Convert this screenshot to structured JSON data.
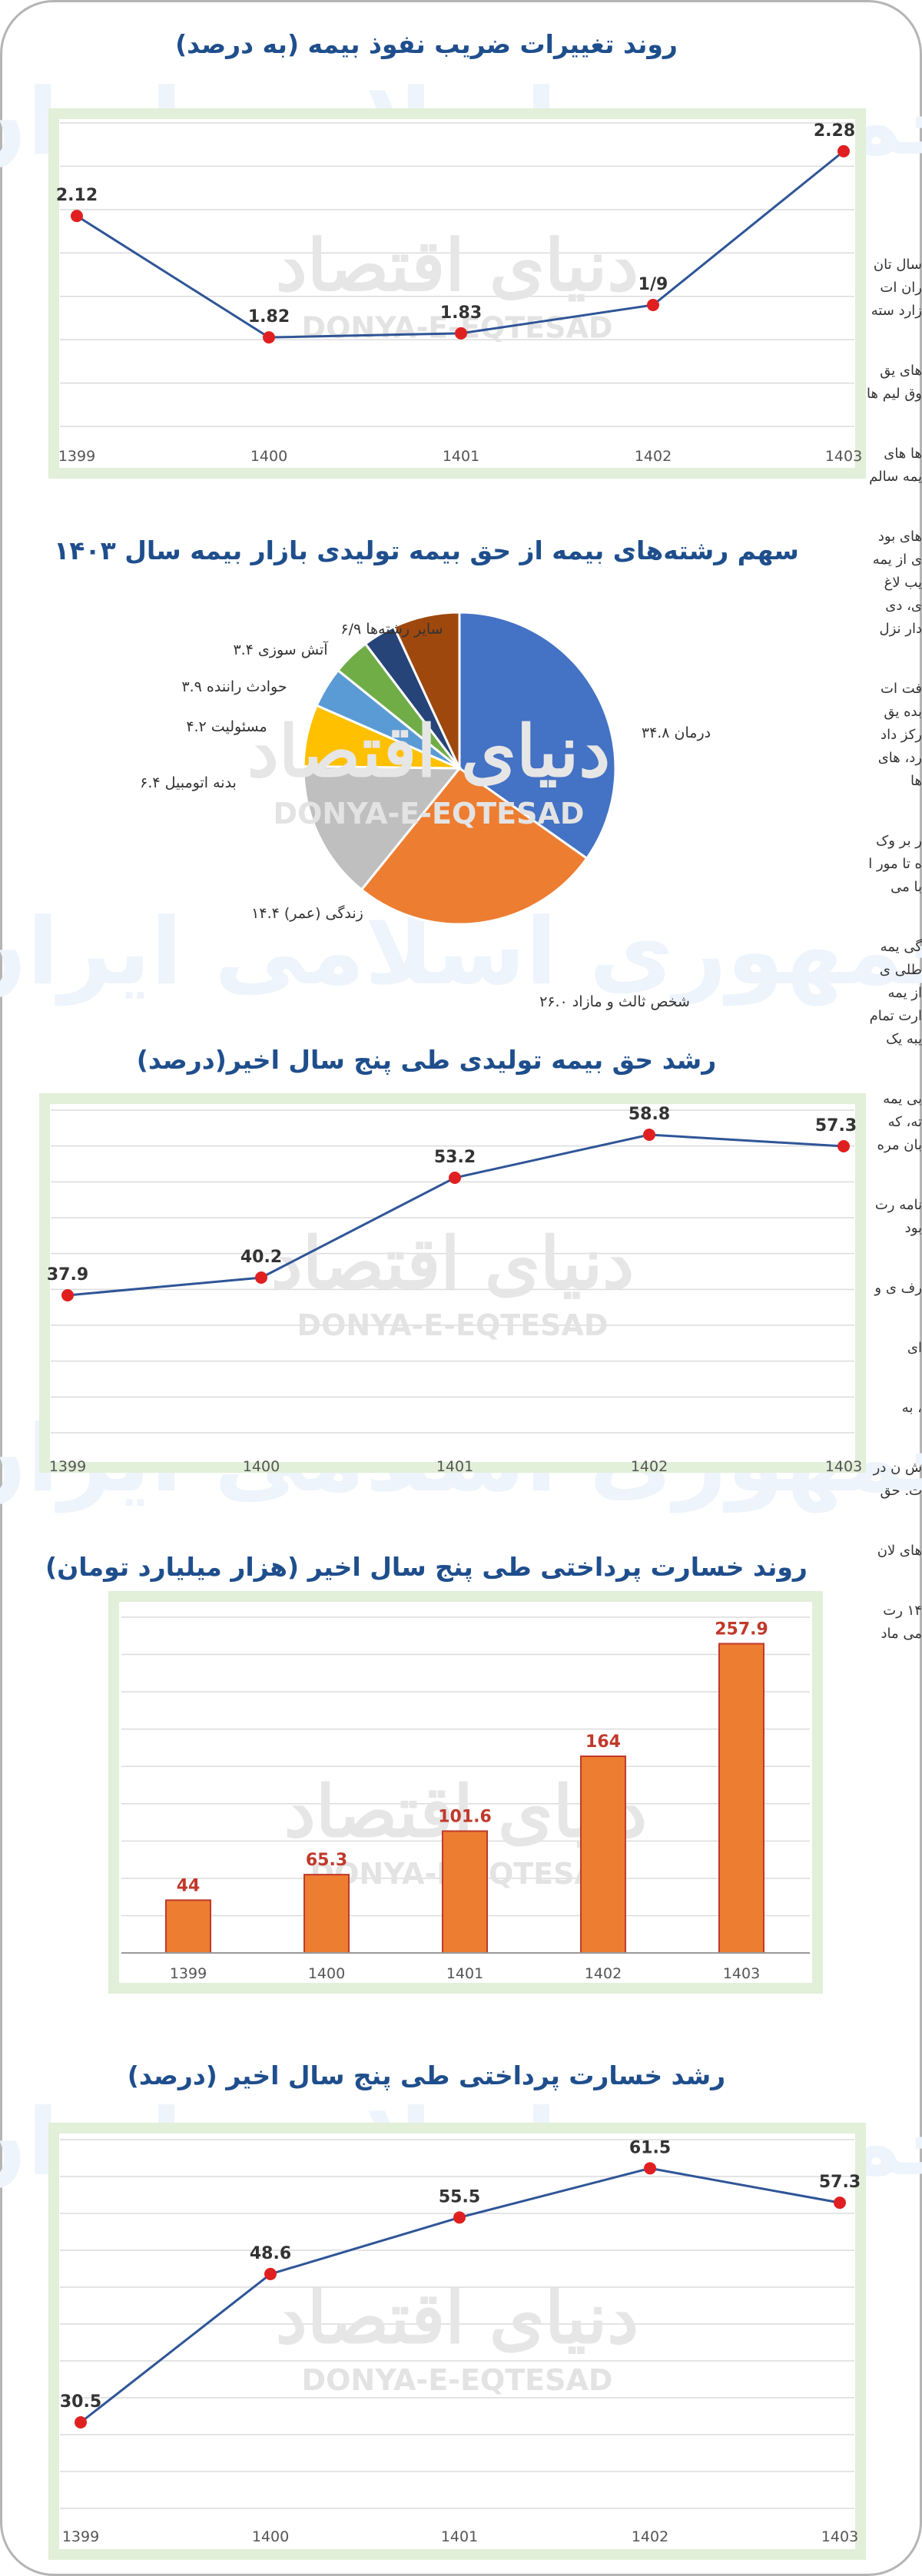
{
  "watermark": {
    "script": "دنیای اقتصاد",
    "latin": "DONYA-E-EQTESAD",
    "bg": "جمهوری اسلامی ایران"
  },
  "colors": {
    "title": "#1f4e8c",
    "line": "#2f5597",
    "dot": "#e02020",
    "bar": "#ed7d31",
    "bar_label": "#c0392b",
    "panel_border": "#e2efd9"
  },
  "chart_data": [
    {
      "type": "line",
      "title": "روند تغییرات ضریب نفوذ بیمه (به درصد)",
      "categories": [
        "1399",
        "1400",
        "1401",
        "1402",
        "1403"
      ],
      "values": [
        2.12,
        1.82,
        1.83,
        1.9,
        2.28
      ],
      "data_labels": [
        "2.12",
        "1.82",
        "1.83",
        "1/9",
        "2.28"
      ],
      "ylim": [
        1.6,
        2.35
      ],
      "grid": true
    },
    {
      "type": "pie",
      "title": "سهم رشته‌های بیمه از حق بیمه تولیدی بازار بیمه سال ۱۴۰۳",
      "slices": [
        {
          "label": "درمان ۳۴.۸",
          "value": 34.8,
          "color": "#4472c4"
        },
        {
          "label": "شخص ثالث و مازاد ۲۶.۰",
          "value": 26.0,
          "color": "#ed7d31"
        },
        {
          "label": "زندگی (عمر) ۱۴.۴",
          "value": 14.4,
          "color": "#bfbfbf"
        },
        {
          "label": "بدنه اتومبیل ۶.۴",
          "value": 6.4,
          "color": "#ffc000"
        },
        {
          "label": "مسئولیت ۴.۲",
          "value": 4.2,
          "color": "#5b9bd5"
        },
        {
          "label": "حوادث راننده ۳.۹",
          "value": 3.9,
          "color": "#70ad47"
        },
        {
          "label": "آتش سوزی ۳.۴",
          "value": 3.4,
          "color": "#264478"
        },
        {
          "label": "سایر رشته‌ها ۶/۹",
          "value": 6.9,
          "color": "#9e480e"
        }
      ]
    },
    {
      "type": "line",
      "title": "رشد حق بیمه تولیدی طی پنج سال اخیر(درصد)",
      "categories": [
        "1399",
        "1400",
        "1401",
        "1402",
        "1403"
      ],
      "values": [
        37.9,
        40.2,
        53.2,
        58.8,
        57.3
      ],
      "data_labels": [
        "37.9",
        "40.2",
        "53.2",
        "58.8",
        "57.3"
      ],
      "ylim": [
        20,
        62
      ],
      "grid": true
    },
    {
      "type": "bar",
      "title": "روند خسارت پرداختی طی پنج سال اخیر (هزار میلیارد تومان)",
      "categories": [
        "1399",
        "1400",
        "1401",
        "1402",
        "1403"
      ],
      "values": [
        44,
        65.3,
        101.6,
        164,
        257.9
      ],
      "data_labels": [
        "44",
        "65.3",
        "101.6",
        "164",
        "257.9"
      ],
      "ylim": [
        0,
        280
      ],
      "grid": true
    },
    {
      "type": "line",
      "title": "رشد خسارت پرداختی طی پنج سال اخیر (درصد)",
      "categories": [
        "1399",
        "1400",
        "1401",
        "1402",
        "1403"
      ],
      "values": [
        30.5,
        48.6,
        55.5,
        61.5,
        57.3
      ],
      "data_labels": [
        "30.5",
        "48.6",
        "55.5",
        "61.5",
        "57.3"
      ],
      "ylim": [
        20,
        65
      ],
      "grid": true
    }
  ],
  "edge_text": [
    "سال تان ران ات زارد سته",
    "های یق وق لیم ها",
    "ها های یمه سالم",
    "های بود ی از یمه یب لاغ ی، دی دار نزل",
    "فت ات بده یق رکز داد رد، های ها",
    "ر بر وک ه تا مور ا با می",
    "گی یمه طلی ی از یمه ارت تمام یبه یک",
    "بی یمه ته، که بان مره",
    "نامه رت بود",
    "رف ی و",
    "ای",
    "، به",
    "ش ن در ت. حق",
    "های لان",
    "۱۴ رت می ماد"
  ]
}
